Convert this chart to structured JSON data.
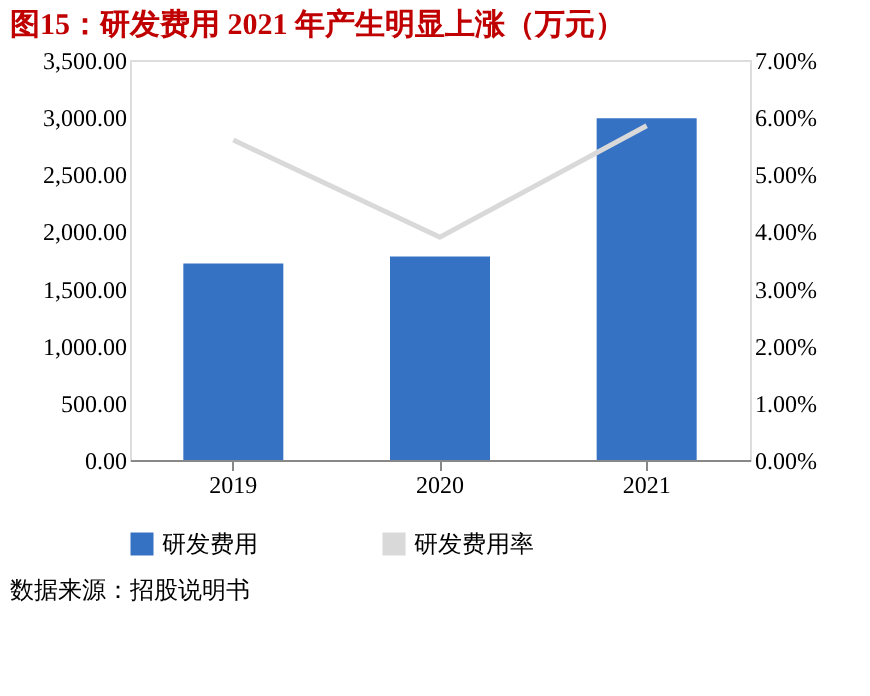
{
  "chart_data": {
    "type": "bar",
    "title": "图15：研发费用 2021 年产生明显上涨（万元）",
    "categories": [
      "2019",
      "2020",
      "2021"
    ],
    "series": [
      {
        "name": "研发费用",
        "color": "#3672c4",
        "values": [
          1720,
          1780,
          2990
        ]
      },
      {
        "name": "研发费用率",
        "type": "line",
        "axis": "y2",
        "color": "#d9d9d9",
        "values": [
          5.6,
          3.9,
          5.85
        ]
      }
    ],
    "ylim": [
      0,
      3500
    ],
    "yticks": [
      {
        "value": 0,
        "label": "0.00"
      },
      {
        "value": 500,
        "label": "500.00"
      },
      {
        "value": 1000,
        "label": "1,000.00"
      },
      {
        "value": 1500,
        "label": "1,500.00"
      },
      {
        "value": 2000,
        "label": "2,000.00"
      },
      {
        "value": 2500,
        "label": "2,500.00"
      },
      {
        "value": 3000,
        "label": "3,000.00"
      },
      {
        "value": 3500,
        "label": "3,500.00"
      }
    ],
    "y2lim": [
      0,
      7
    ],
    "y2ticks": [
      {
        "value": 0,
        "label": "0.00%"
      },
      {
        "value": 1,
        "label": "1.00%"
      },
      {
        "value": 2,
        "label": "2.00%"
      },
      {
        "value": 3,
        "label": "3.00%"
      },
      {
        "value": 4,
        "label": "4.00%"
      },
      {
        "value": 5,
        "label": "5.00%"
      },
      {
        "value": 6,
        "label": "6.00%"
      },
      {
        "value": 7,
        "label": "7.00%"
      }
    ],
    "grid": false,
    "legend": "bottom",
    "marker": "none",
    "annotations": [
      "数据来源：招股说明书"
    ]
  }
}
